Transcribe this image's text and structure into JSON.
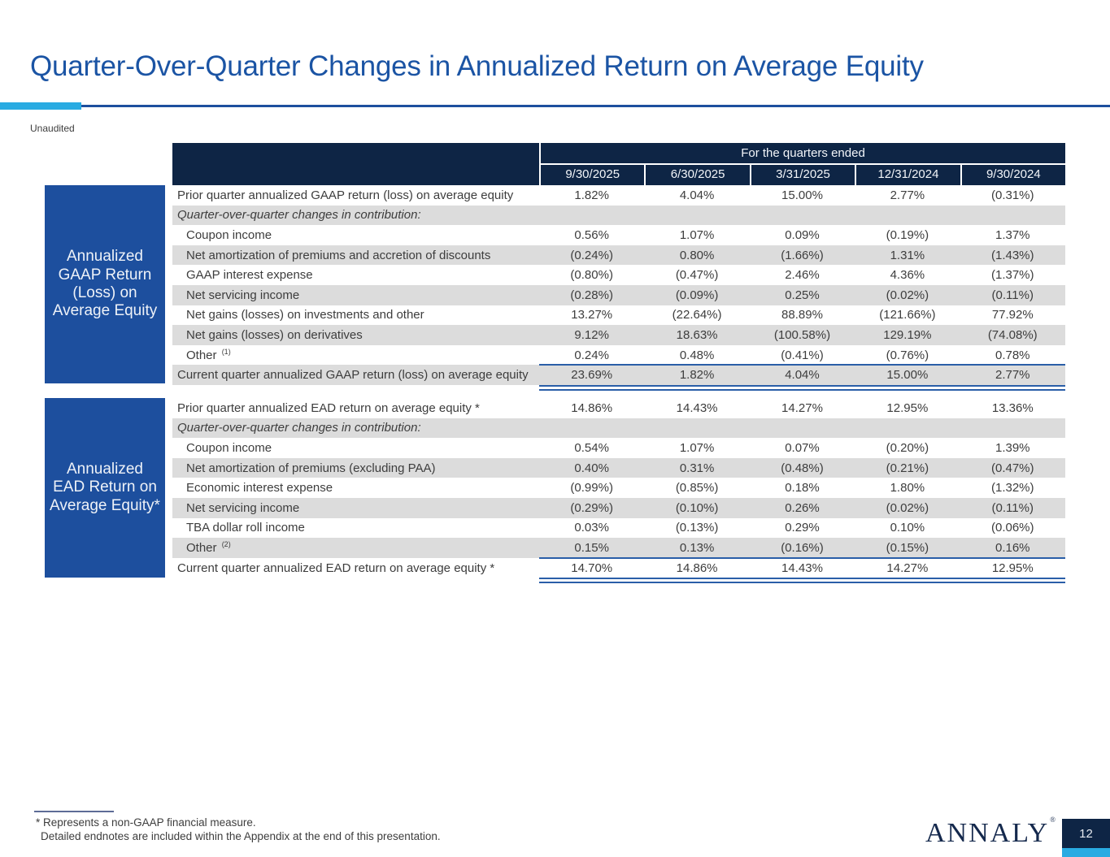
{
  "header": {
    "title": "Quarter-Over-Quarter Changes in Annualized Return on Average Equity",
    "subtitle": "Unaudited"
  },
  "colors": {
    "navy": "#0e2545",
    "royal": "#1d4f9e",
    "cyan": "#29abe2",
    "title": "#1b54a4",
    "rule": "#2a5ea8",
    "band": "#dcdcdc",
    "text": "#3d3d3d",
    "fnrule": "#5d6c96",
    "logo": "#15294d"
  },
  "table": {
    "spanner": "For the quarters ended",
    "columns": [
      "9/30/2025",
      "6/30/2025",
      "3/31/2025",
      "12/31/2024",
      "9/30/2024"
    ]
  },
  "sections": [
    {
      "side_label": "Annualized GAAP Return (Loss) on Average Equity",
      "rows": [
        {
          "label": "Prior quarter annualized GAAP return (loss) on average equity",
          "type": "plain",
          "values": [
            "1.82%",
            "4.04%",
            "15.00%",
            "2.77%",
            "(0.31%)"
          ]
        },
        {
          "label": "Quarter-over-quarter changes in contribution:",
          "type": "subheader",
          "values": []
        },
        {
          "label": "Coupon income",
          "type": "indent",
          "values": [
            "0.56%",
            "1.07%",
            "0.09%",
            "(0.19%)",
            "1.37%"
          ]
        },
        {
          "label": "Net amortization of premiums and accretion of discounts",
          "type": "indent",
          "values": [
            "(0.24%)",
            "0.80%",
            "(1.66%)",
            "1.31%",
            "(1.43%)"
          ]
        },
        {
          "label": "GAAP interest expense",
          "type": "indent",
          "values": [
            "(0.80%)",
            "(0.47%)",
            "2.46%",
            "4.36%",
            "(1.37%)"
          ]
        },
        {
          "label": "Net servicing income",
          "type": "indent",
          "values": [
            "(0.28%)",
            "(0.09%)",
            "0.25%",
            "(0.02%)",
            "(0.11%)"
          ]
        },
        {
          "label": "Net gains (losses) on investments and other",
          "type": "indent",
          "values": [
            "13.27%",
            "(22.64%)",
            "88.89%",
            "(121.66%)",
            "77.92%"
          ]
        },
        {
          "label": "Net gains (losses) on derivatives",
          "type": "indent",
          "values": [
            "9.12%",
            "18.63%",
            "(100.58%)",
            "129.19%",
            "(74.08%)"
          ]
        },
        {
          "label": "Other",
          "sup": "(1)",
          "type": "indent",
          "values": [
            "0.24%",
            "0.48%",
            "(0.41%)",
            "(0.76%)",
            "0.78%"
          ]
        },
        {
          "label": "Current quarter annualized GAAP return (loss) on average equity",
          "type": "total",
          "values": [
            "23.69%",
            "1.82%",
            "4.04%",
            "15.00%",
            "2.77%"
          ]
        }
      ]
    },
    {
      "side_label": "Annualized EAD Return on Average Equity*",
      "rows": [
        {
          "label": "Prior quarter annualized EAD return on average equity *",
          "type": "plain",
          "values": [
            "14.86%",
            "14.43%",
            "14.27%",
            "12.95%",
            "13.36%"
          ]
        },
        {
          "label": "Quarter-over-quarter changes in contribution:",
          "type": "subheader",
          "values": []
        },
        {
          "label": "Coupon income",
          "type": "indent",
          "values": [
            "0.54%",
            "1.07%",
            "0.07%",
            "(0.20%)",
            "1.39%"
          ]
        },
        {
          "label": "Net amortization of premiums (excluding PAA)",
          "type": "indent",
          "values": [
            "0.40%",
            "0.31%",
            "(0.48%)",
            "(0.21%)",
            "(0.47%)"
          ]
        },
        {
          "label": "Economic interest expense",
          "type": "indent",
          "values": [
            "(0.99%)",
            "(0.85%)",
            "0.18%",
            "1.80%",
            "(1.32%)"
          ]
        },
        {
          "label": "Net servicing income",
          "type": "indent",
          "values": [
            "(0.29%)",
            "(0.10%)",
            "0.26%",
            "(0.02%)",
            "(0.11%)"
          ]
        },
        {
          "label": "TBA dollar roll income",
          "type": "indent",
          "values": [
            "0.03%",
            "(0.13%)",
            "0.29%",
            "0.10%",
            "(0.06%)"
          ]
        },
        {
          "label": "Other",
          "sup": "(2)",
          "type": "indent",
          "values": [
            "0.15%",
            "0.13%",
            "(0.16%)",
            "(0.15%)",
            "0.16%"
          ]
        },
        {
          "label": "Current quarter annualized EAD return on average equity *",
          "type": "total",
          "values": [
            "14.70%",
            "14.86%",
            "14.43%",
            "14.27%",
            "12.95%"
          ]
        }
      ]
    }
  ],
  "footnotes": [
    "* Represents a non-GAAP financial measure.",
    "Detailed endnotes are included within the Appendix at the end of this presentation."
  ],
  "logo": {
    "text": "ANNALY",
    "reg": "®"
  },
  "page": {
    "number": "12"
  }
}
